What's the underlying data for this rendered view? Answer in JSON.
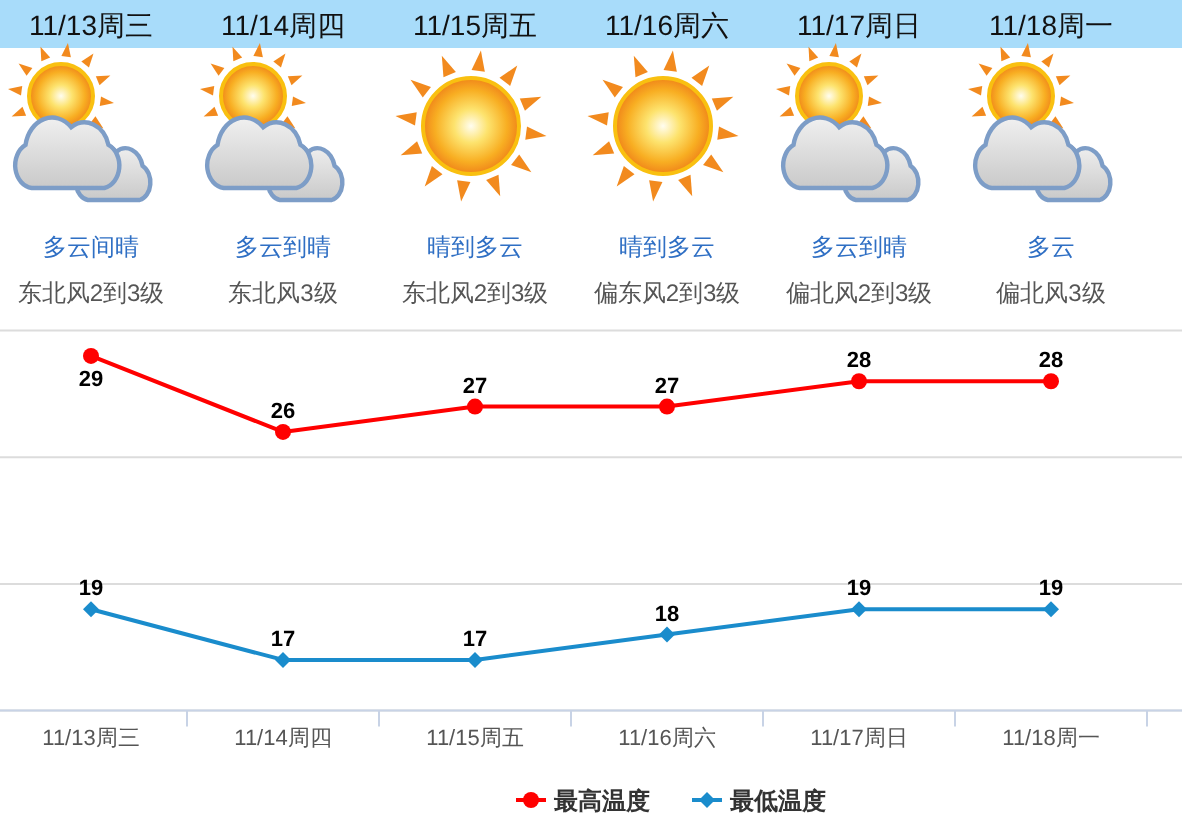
{
  "chart_data": [
    {
      "type": "other",
      "categories": [
        "11/13周三",
        "11/14周四",
        "11/15周五",
        "11/16周六",
        "11/17周日",
        "11/18周一"
      ],
      "annotations": [
        "多云间晴",
        "东北风2到3级",
        "多云到晴",
        "东北风3级",
        "晴到多云",
        "东北风2到3级",
        "晴到多云",
        "偏东风2到3级",
        "多云到晴",
        "偏北风2到3级",
        "多云",
        "偏北风3级"
      ]
    },
    {
      "type": "line",
      "categories": [
        "11/13周三",
        "11/14周四",
        "11/15周五",
        "11/16周六",
        "11/17周日",
        "11/18周一"
      ],
      "series": [
        {
          "name": "最高温度",
          "color": "#ff0000",
          "marker": "circle",
          "values": [
            29,
            26,
            27,
            27,
            28,
            28
          ]
        },
        {
          "name": "最低温度",
          "color": "#1a8ccc",
          "marker": "diamond",
          "values": [
            19,
            17,
            17,
            18,
            19,
            19
          ]
        }
      ],
      "ylim": [
        15,
        30
      ],
      "yticks": [
        {
          "value": 15,
          "label": null
        },
        {
          "value": 20,
          "label": null
        },
        {
          "value": 25,
          "label": null
        },
        {
          "value": 30,
          "label": null
        }
      ],
      "tick_labels": "x",
      "grid": "y",
      "legend": "bottom",
      "data_labels": true
    }
  ]
}
